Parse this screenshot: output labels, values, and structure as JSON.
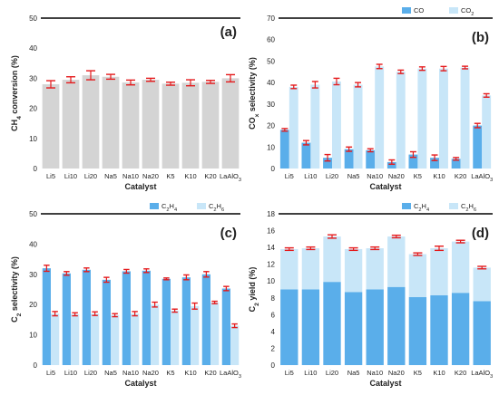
{
  "chart_data": [
    {
      "type": "bar",
      "panel_label": "(a)",
      "categories": [
        "Li5",
        "Li10",
        "Li20",
        "Na5",
        "Na10",
        "Na20",
        "K5",
        "K10",
        "K20",
        "LaAlO3"
      ],
      "series": [
        {
          "name": "",
          "values": [
            28.0,
            29.5,
            31.0,
            30.5,
            28.6,
            29.5,
            28.2,
            28.5,
            28.8,
            30.0
          ],
          "errors": [
            1.2,
            1.0,
            1.5,
            0.8,
            0.8,
            0.5,
            0.5,
            1.0,
            0.5,
            1.2
          ],
          "color": "#d4d4d4"
        }
      ],
      "xlabel": "Catalyst",
      "ylabel_parts": {
        "pre": "CH",
        "sub": "4",
        "post": " conversion (%)"
      },
      "ylim": [
        0,
        50
      ],
      "yticks": [
        0,
        10,
        20,
        30,
        40,
        50
      ],
      "ytick_labels": [
        "0",
        "10",
        "20",
        "30",
        "40",
        "50"
      ],
      "legend": "none",
      "grid": false
    },
    {
      "type": "bar",
      "panel_label": "(b)",
      "categories": [
        "Li5",
        "Li10",
        "Li20",
        "Na5",
        "Na10",
        "Na20",
        "K5",
        "K10",
        "K20",
        "LaAlO3"
      ],
      "series": [
        {
          "name": "CO",
          "values": [
            18.0,
            12.0,
            5.0,
            9.0,
            8.5,
            3.0,
            6.5,
            5.0,
            4.5,
            20.0
          ],
          "errors": [
            0.6,
            1.0,
            1.5,
            1.0,
            0.7,
            1.0,
            1.3,
            1.3,
            0.6,
            1.0
          ],
          "color": "#5aaeea"
        },
        {
          "name": "CO2",
          "values": [
            38.0,
            39.0,
            40.5,
            39.0,
            47.5,
            45.0,
            46.5,
            46.5,
            47.0,
            34.0
          ],
          "errors": [
            0.8,
            1.5,
            1.5,
            1.0,
            1.0,
            0.8,
            0.8,
            1.0,
            0.6,
            0.8
          ],
          "color": "#c8e6f8"
        }
      ],
      "legend_labels": [
        {
          "pre": "CO",
          "sub": "",
          "post": ""
        },
        {
          "pre": "CO",
          "sub": "2",
          "post": ""
        }
      ],
      "xlabel": "Catalyst",
      "ylabel_parts": {
        "pre": "CO",
        "sub": "x",
        "post": " selectivity (%)"
      },
      "ylim": [
        0,
        70
      ],
      "yticks": [
        0,
        10,
        20,
        30,
        40,
        50,
        60,
        70
      ],
      "ytick_labels": [
        "0",
        "10",
        "20",
        "30",
        "40",
        "50",
        "60",
        "70"
      ],
      "legend": "top-right",
      "grid": false
    },
    {
      "type": "bar",
      "panel_label": "(c)",
      "categories": [
        "Li5",
        "Li10",
        "Li20",
        "Na5",
        "Na10",
        "Na20",
        "K5",
        "K10",
        "K20",
        "LaAlO3"
      ],
      "series": [
        {
          "name": "C2H4",
          "values": [
            32.0,
            30.3,
            31.5,
            28.2,
            31.0,
            31.2,
            28.5,
            29.0,
            30.0,
            25.3
          ],
          "errors": [
            1.0,
            0.6,
            0.6,
            0.8,
            0.6,
            0.6,
            0.3,
            0.8,
            0.9,
            0.7
          ],
          "color": "#5aaeea"
        },
        {
          "name": "C2H6",
          "values": [
            17.0,
            16.8,
            17.0,
            16.5,
            17.0,
            20.0,
            18.0,
            19.5,
            20.7,
            13.0
          ],
          "errors": [
            0.7,
            0.5,
            0.6,
            0.5,
            0.7,
            0.8,
            0.5,
            1.0,
            0.4,
            0.6
          ],
          "color": "#c8e6f8"
        }
      ],
      "legend_labels": [
        {
          "pre": "C",
          "sub": "2",
          "post": "H",
          "sub2": "4"
        },
        {
          "pre": "C",
          "sub": "2",
          "post": "H",
          "sub2": "6"
        }
      ],
      "xlabel": "Catalyst",
      "ylabel_parts": {
        "pre": "C",
        "sub": "2",
        "post": " selectivity (%)"
      },
      "ylim": [
        0,
        50
      ],
      "yticks": [
        0,
        10,
        20,
        30,
        40,
        50
      ],
      "ytick_labels": [
        "0",
        "10",
        "20",
        "30",
        "40",
        "50"
      ],
      "legend": "top-right",
      "grid": false
    },
    {
      "type": "bar",
      "stacked": true,
      "panel_label": "(d)",
      "categories": [
        "Li5",
        "Li10",
        "Li20",
        "Na5",
        "Na10",
        "Na20",
        "K5",
        "K10",
        "K20",
        "LaAlO3"
      ],
      "series": [
        {
          "name": "C2H4",
          "values": [
            9.0,
            9.0,
            9.9,
            8.7,
            9.0,
            9.3,
            8.1,
            8.3,
            8.6,
            7.6
          ],
          "color": "#5aaeea"
        },
        {
          "name": "C2H6",
          "values": [
            4.8,
            4.9,
            5.4,
            5.1,
            4.9,
            6.0,
            5.1,
            5.6,
            6.1,
            4.0
          ],
          "color": "#c8e6f8"
        }
      ],
      "totals": [
        13.8,
        13.9,
        15.3,
        13.8,
        13.9,
        15.3,
        13.2,
        13.9,
        14.7,
        11.6
      ],
      "total_errors": [
        0.15,
        0.15,
        0.2,
        0.15,
        0.15,
        0.15,
        0.15,
        0.25,
        0.15,
        0.15
      ],
      "legend_labels": [
        {
          "pre": "C",
          "sub": "2",
          "post": "H",
          "sub2": "4"
        },
        {
          "pre": "C",
          "sub": "2",
          "post": "H",
          "sub2": "6"
        }
      ],
      "xlabel": "Catalyst",
      "ylabel_parts": {
        "pre": "C",
        "sub": "2",
        "post": " yield (%)"
      },
      "ylim": [
        0,
        18
      ],
      "yticks": [
        0,
        2,
        4,
        6,
        8,
        10,
        12,
        14,
        16,
        18
      ],
      "ytick_labels": [
        "0",
        "2",
        "4",
        "6",
        "8",
        "10",
        "12",
        "14",
        "16",
        "18"
      ],
      "legend": "top-right",
      "grid": false
    }
  ],
  "colors": {
    "error_bar": "#e41a1c",
    "axis": "#000000"
  }
}
